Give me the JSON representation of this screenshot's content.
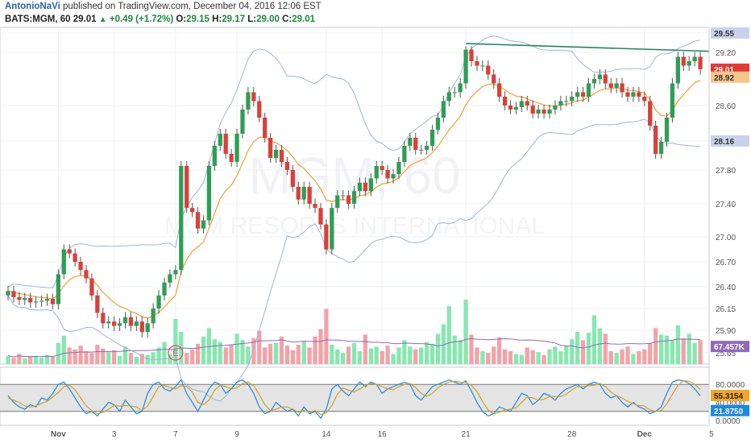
{
  "header": {
    "author": "AntonioNaVi",
    "published_text": "published on TradingView.com, December 04, 2016 12:06 EST",
    "symbol": "BATS:MGM, 60",
    "last": "29.01",
    "change": "+0.49 (+1.72%)",
    "o_label": "O:",
    "o_val": "29.15",
    "h_label": "H:",
    "h_val": "29.17",
    "l_label": "L:",
    "l_val": "29.00",
    "c_label": "C:",
    "c_val": "29.01"
  },
  "watermark": {
    "line1": "MGM, 60",
    "line2": "MGM RESORTS INTERNATIONAL"
  },
  "price_axis": {
    "ticks": [
      "29.55",
      "29.20",
      "28.60",
      "28.16",
      "27.80",
      "27.40",
      "27.00",
      "26.70",
      "26.40",
      "26.15",
      "25.90",
      "25.65"
    ],
    "tick_values": [
      29.55,
      29.2,
      28.6,
      28.16,
      27.8,
      27.4,
      27.0,
      26.7,
      26.4,
      26.15,
      25.9,
      25.65
    ],
    "badges": [
      {
        "text": "29.55",
        "value": 29.55,
        "color": "#c7d3ec",
        "fg": "#333"
      },
      {
        "text": "29.01",
        "value": 29.01,
        "color": "#e53935",
        "fg": "#ffffff"
      },
      {
        "text": "28.92",
        "value": 28.92,
        "color": "#f6c58a",
        "fg": "#333"
      },
      {
        "text": "28.16",
        "value": 28.16,
        "color": "#c7d3ec",
        "fg": "#333"
      },
      {
        "text": "67.457K",
        "value": 25.72,
        "color": "#8e6bb8",
        "fg": "#ffffff"
      }
    ]
  },
  "stoch_axis": {
    "ticks": [
      "80.0000",
      "40.0000",
      "0.0000"
    ],
    "tick_values": [
      80,
      40,
      0
    ],
    "badges": [
      {
        "text": "55.3154",
        "value": 55.3154,
        "color": "#f5a623",
        "fg": "#222"
      },
      {
        "text": "21.8750",
        "value": 21.875,
        "color": "#1e88e5",
        "fg": "#ffffff"
      }
    ]
  },
  "time_axis": {
    "labels": [
      "Nov",
      "3",
      "7",
      "9",
      "14",
      "16",
      "21",
      "28",
      "Dec",
      "5"
    ],
    "bar_index": [
      9,
      19,
      30,
      41,
      57,
      67,
      82,
      101,
      114,
      126
    ]
  },
  "event_marker": "E",
  "colors": {
    "up": "#2e9e55",
    "down": "#d9403a",
    "vol_up": "#86e8b0",
    "vol_down": "#f2a3a8",
    "bb": "#9fb5d8",
    "ema": "#f0a030",
    "trend": "#1d8a5a",
    "stoch_k": "#1e88e5",
    "stoch_d": "#d4a020",
    "vol_ma": "#8e6bb8"
  },
  "chart_data": {
    "type": "candlestick",
    "series_name": "BATS:MGM, 60",
    "closes": [
      26.35,
      26.28,
      26.25,
      26.27,
      26.22,
      26.23,
      26.24,
      26.26,
      26.2,
      26.55,
      26.85,
      26.8,
      26.7,
      26.6,
      26.5,
      26.3,
      26.1,
      25.98,
      26.0,
      25.95,
      25.98,
      26.05,
      25.95,
      26.0,
      25.88,
      25.98,
      26.15,
      26.3,
      26.45,
      26.55,
      26.6,
      27.85,
      27.35,
      27.3,
      27.1,
      27.2,
      27.85,
      28.1,
      28.25,
      28.0,
      27.9,
      28.25,
      28.55,
      28.75,
      28.65,
      28.45,
      28.2,
      27.95,
      28.05,
      27.9,
      27.8,
      27.6,
      27.45,
      27.6,
      27.4,
      27.35,
      27.15,
      26.85,
      27.35,
      27.5,
      27.5,
      27.4,
      27.55,
      27.65,
      27.55,
      27.7,
      27.85,
      27.8,
      27.7,
      27.75,
      27.9,
      28.1,
      28.2,
      28.05,
      28.05,
      28.1,
      28.3,
      28.45,
      28.65,
      28.75,
      28.75,
      28.85,
      29.25,
      29.1,
      29.05,
      29.05,
      28.95,
      28.85,
      28.7,
      28.6,
      28.55,
      28.58,
      28.65,
      28.6,
      28.5,
      28.55,
      28.5,
      28.55,
      28.6,
      28.65,
      28.65,
      28.7,
      28.75,
      28.7,
      28.85,
      28.9,
      28.95,
      28.85,
      28.8,
      28.85,
      28.75,
      28.7,
      28.75,
      28.7,
      28.65,
      28.35,
      28.0,
      28.15,
      28.45,
      28.85,
      29.15,
      29.05,
      29.1,
      29.15,
      29.01
    ],
    "volumes": [
      0.9,
      0.7,
      1.1,
      0.6,
      0.8,
      0.9,
      0.7,
      1.0,
      0.8,
      2.3,
      3.1,
      1.8,
      1.6,
      2.0,
      1.4,
      1.2,
      2.1,
      1.7,
      1.3,
      1.5,
      0.9,
      1.9,
      1.2,
      0.8,
      1.1,
      1.0,
      1.3,
      1.8,
      2.4,
      1.1,
      4.9,
      3.5,
      1.2,
      1.6,
      2.2,
      3.0,
      3.9,
      2.7,
      2.4,
      1.8,
      2.1,
      3.3,
      2.6,
      1.9,
      2.8,
      3.6,
      1.8,
      2.2,
      2.3,
      3.0,
      2.0,
      1.5,
      2.1,
      2.5,
      1.8,
      3.0,
      3.8,
      6.0,
      2.1,
      1.6,
      1.2,
      1.9,
      2.3,
      1.4,
      3.2,
      1.7,
      1.9,
      1.4,
      2.0,
      1.1,
      1.8,
      2.6,
      1.9,
      1.6,
      1.8,
      2.4,
      2.2,
      3.3,
      4.3,
      6.3,
      3.1,
      2.6,
      7.0,
      3.2,
      1.8,
      1.4,
      1.2,
      1.9,
      2.9,
      1.6,
      1.4,
      1.1,
      1.0,
      1.8,
      1.5,
      1.3,
      1.0,
      1.6,
      1.9,
      1.4,
      2.0,
      2.7,
      3.5,
      2.6,
      3.4,
      5.3,
      3.9,
      3.3,
      1.4,
      1.2,
      1.6,
      1.9,
      1.1,
      1.4,
      1.6,
      2.3,
      3.9,
      3.2,
      3.1,
      2.6,
      4.2,
      2.8,
      3.3,
      2.3,
      2.6
    ],
    "stoch_k": [
      55,
      40,
      30,
      25,
      35,
      30,
      50,
      45,
      60,
      80,
      85,
      70,
      50,
      30,
      15,
      20,
      10,
      25,
      40,
      35,
      20,
      45,
      30,
      15,
      20,
      60,
      80,
      85,
      70,
      65,
      75,
      90,
      60,
      40,
      20,
      45,
      70,
      85,
      80,
      60,
      70,
      85,
      90,
      80,
      60,
      30,
      15,
      20,
      40,
      30,
      20,
      25,
      10,
      30,
      15,
      20,
      5,
      25,
      70,
      80,
      65,
      55,
      70,
      85,
      75,
      85,
      80,
      60,
      70,
      75,
      80,
      85,
      80,
      55,
      45,
      60,
      75,
      80,
      85,
      90,
      85,
      80,
      88,
      65,
      40,
      20,
      10,
      15,
      30,
      25,
      20,
      40,
      60,
      55,
      35,
      45,
      60,
      55,
      45,
      60,
      70,
      75,
      80,
      70,
      80,
      85,
      80,
      60,
      50,
      55,
      40,
      30,
      40,
      30,
      25,
      15,
      20,
      30,
      60,
      85,
      90,
      88,
      82,
      70,
      55
    ],
    "stoch_d": [
      50,
      45,
      40,
      32,
      30,
      32,
      38,
      42,
      52,
      62,
      75,
      78,
      68,
      50,
      32,
      22,
      15,
      18,
      25,
      33,
      32,
      33,
      32,
      30,
      22,
      32,
      53,
      75,
      78,
      73,
      70,
      77,
      75,
      63,
      40,
      35,
      45,
      67,
      78,
      75,
      70,
      72,
      82,
      85,
      77,
      57,
      35,
      22,
      25,
      30,
      30,
      25,
      18,
      22,
      18,
      22,
      13,
      17,
      33,
      58,
      72,
      67,
      63,
      70,
      77,
      82,
      80,
      75,
      70,
      68,
      75,
      80,
      82,
      73,
      60,
      53,
      60,
      72,
      80,
      85,
      87,
      85,
      84,
      78,
      64,
      42,
      23,
      15,
      18,
      23,
      25,
      28,
      40,
      52,
      50,
      45,
      47,
      53,
      53,
      53,
      58,
      68,
      75,
      75,
      77,
      78,
      82,
      75,
      63,
      55,
      50,
      42,
      37,
      33,
      32,
      23,
      20,
      22,
      37,
      58,
      78,
      88,
      87,
      80,
      69
    ]
  }
}
